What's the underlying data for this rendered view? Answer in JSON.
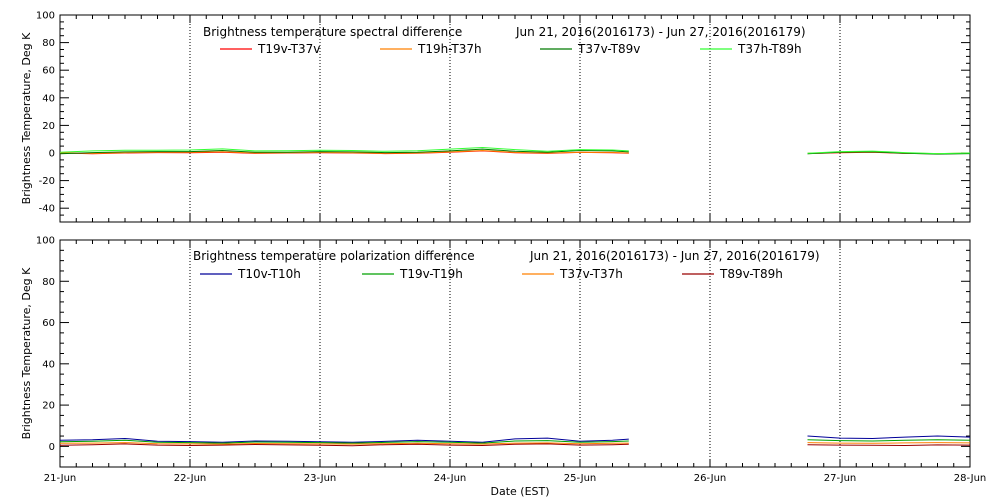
{
  "chart_data": [
    {
      "type": "line",
      "title": "Brightness temperature spectral difference",
      "date_range": "Jun 21, 2016(2016173) - Jun 27, 2016(2016179)",
      "xlabel": "",
      "ylabel": "Brightness Temperature, Deg K",
      "ylim": [
        -50,
        100
      ],
      "yticks": [
        -40,
        -20,
        0,
        20,
        40,
        60,
        80,
        100
      ],
      "xlim": [
        "2016-06-21",
        "2016-06-28"
      ],
      "xticks": [
        "21-Jun",
        "22-Jun",
        "23-Jun",
        "24-Jun",
        "25-Jun",
        "26-Jun",
        "27-Jun",
        "28-Jun"
      ],
      "grid": "vertical-dotted",
      "legend": "top",
      "series": [
        {
          "name": "T19v-T37v",
          "color": "#ff0000",
          "points": [
            [
              "2016-06-21 00:00",
              0.0
            ],
            [
              "2016-06-21 06:00",
              -0.5
            ],
            [
              "2016-06-21 12:00",
              0.0
            ],
            [
              "2016-06-21 18:00",
              0.3
            ],
            [
              "2016-06-22 00:00",
              0.2
            ],
            [
              "2016-06-22 06:00",
              0.6
            ],
            [
              "2016-06-22 12:00",
              -0.3
            ],
            [
              "2016-06-22 18:00",
              0.0
            ],
            [
              "2016-06-23 00:00",
              0.2
            ],
            [
              "2016-06-23 06:00",
              0.0
            ],
            [
              "2016-06-23 12:00",
              -0.4
            ],
            [
              "2016-06-23 18:00",
              -0.2
            ],
            [
              "2016-06-24 00:00",
              0.5
            ],
            [
              "2016-06-24 06:00",
              1.5
            ],
            [
              "2016-06-24 12:00",
              0.2
            ],
            [
              "2016-06-24 18:00",
              -0.3
            ],
            [
              "2016-06-25 00:00",
              0.4
            ],
            [
              "2016-06-25 06:00",
              0.2
            ],
            [
              "2016-06-25 09:00",
              -0.2
            ],
            null,
            [
              "2016-06-26 18:00",
              -0.4
            ],
            [
              "2016-06-27 00:00",
              0.2
            ],
            [
              "2016-06-27 06:00",
              0.5
            ],
            [
              "2016-06-27 12:00",
              -0.3
            ],
            [
              "2016-06-27 18:00",
              -0.6
            ],
            [
              "2016-06-28 00:00",
              -0.3
            ]
          ]
        },
        {
          "name": "T19h-T37h",
          "color": "#ff8000",
          "points": [
            [
              "2016-06-21 00:00",
              0.3
            ],
            [
              "2016-06-21 06:00",
              -0.3
            ],
            [
              "2016-06-21 12:00",
              0.2
            ],
            [
              "2016-06-21 18:00",
              0.5
            ],
            [
              "2016-06-22 00:00",
              0.5
            ],
            [
              "2016-06-22 06:00",
              0.9
            ],
            [
              "2016-06-22 12:00",
              0.0
            ],
            [
              "2016-06-22 18:00",
              0.2
            ],
            [
              "2016-06-23 00:00",
              0.4
            ],
            [
              "2016-06-23 06:00",
              0.2
            ],
            [
              "2016-06-23 12:00",
              -0.2
            ],
            [
              "2016-06-23 18:00",
              0.0
            ],
            [
              "2016-06-24 00:00",
              0.8
            ],
            [
              "2016-06-24 06:00",
              1.8
            ],
            [
              "2016-06-24 12:00",
              0.4
            ],
            [
              "2016-06-24 18:00",
              0.0
            ],
            [
              "2016-06-25 00:00",
              0.6
            ],
            [
              "2016-06-25 06:00",
              0.4
            ],
            [
              "2016-06-25 09:00",
              0.0
            ],
            null,
            [
              "2016-06-26 18:00",
              -0.2
            ],
            [
              "2016-06-27 00:00",
              0.4
            ],
            [
              "2016-06-27 06:00",
              0.7
            ],
            [
              "2016-06-27 12:00",
              -0.1
            ],
            [
              "2016-06-27 18:00",
              -0.4
            ],
            [
              "2016-06-28 00:00",
              -0.1
            ]
          ]
        },
        {
          "name": "T37v-T89v",
          "color": "#007a00",
          "points": [
            [
              "2016-06-21 00:00",
              -0.5
            ],
            [
              "2016-06-21 06:00",
              0.3
            ],
            [
              "2016-06-21 12:00",
              0.8
            ],
            [
              "2016-06-21 18:00",
              1.0
            ],
            [
              "2016-06-22 00:00",
              1.0
            ],
            [
              "2016-06-22 06:00",
              1.8
            ],
            [
              "2016-06-22 12:00",
              0.5
            ],
            [
              "2016-06-22 18:00",
              0.6
            ],
            [
              "2016-06-23 00:00",
              1.0
            ],
            [
              "2016-06-23 06:00",
              0.8
            ],
            [
              "2016-06-23 12:00",
              0.3
            ],
            [
              "2016-06-23 18:00",
              0.6
            ],
            [
              "2016-06-24 00:00",
              1.5
            ],
            [
              "2016-06-24 06:00",
              2.8
            ],
            [
              "2016-06-24 12:00",
              1.2
            ],
            [
              "2016-06-24 18:00",
              0.5
            ],
            [
              "2016-06-25 00:00",
              1.8
            ],
            [
              "2016-06-25 06:00",
              1.5
            ],
            [
              "2016-06-25 09:00",
              0.8
            ],
            null,
            [
              "2016-06-26 18:00",
              -0.6
            ],
            [
              "2016-06-27 00:00",
              0.5
            ],
            [
              "2016-06-27 06:00",
              0.8
            ],
            [
              "2016-06-27 12:00",
              -0.2
            ],
            [
              "2016-06-27 18:00",
              -0.8
            ],
            [
              "2016-06-28 00:00",
              -0.4
            ]
          ]
        },
        {
          "name": "T37h-T89h",
          "color": "#33ff33",
          "points": [
            [
              "2016-06-21 00:00",
              0.5
            ],
            [
              "2016-06-21 06:00",
              1.5
            ],
            [
              "2016-06-21 12:00",
              2.0
            ],
            [
              "2016-06-21 18:00",
              2.0
            ],
            [
              "2016-06-22 00:00",
              2.2
            ],
            [
              "2016-06-22 06:00",
              3.0
            ],
            [
              "2016-06-22 12:00",
              1.5
            ],
            [
              "2016-06-22 18:00",
              1.6
            ],
            [
              "2016-06-23 00:00",
              2.0
            ],
            [
              "2016-06-23 06:00",
              1.8
            ],
            [
              "2016-06-23 12:00",
              1.2
            ],
            [
              "2016-06-23 18:00",
              1.6
            ],
            [
              "2016-06-24 00:00",
              2.8
            ],
            [
              "2016-06-24 06:00",
              4.0
            ],
            [
              "2016-06-24 12:00",
              2.5
            ],
            [
              "2016-06-24 18:00",
              1.2
            ],
            [
              "2016-06-25 00:00",
              2.5
            ],
            [
              "2016-06-25 06:00",
              2.2
            ],
            [
              "2016-06-25 09:00",
              1.5
            ],
            null,
            [
              "2016-06-26 18:00",
              -0.2
            ],
            [
              "2016-06-27 00:00",
              1.0
            ],
            [
              "2016-06-27 06:00",
              1.4
            ],
            [
              "2016-06-27 12:00",
              0.3
            ],
            [
              "2016-06-27 18:00",
              -0.4
            ],
            [
              "2016-06-28 00:00",
              0.0
            ]
          ]
        }
      ]
    },
    {
      "type": "line",
      "title": "Brightness temperature polarization difference",
      "date_range": "Jun 21, 2016(2016173) - Jun 27, 2016(2016179)",
      "xlabel": "Date (EST)",
      "ylabel": "Brightness Temperature, Deg K",
      "ylim": [
        -10,
        100
      ],
      "yticks": [
        0,
        20,
        40,
        60,
        80,
        100
      ],
      "xlim": [
        "2016-06-21",
        "2016-06-28"
      ],
      "xticks": [
        "21-Jun",
        "22-Jun",
        "23-Jun",
        "24-Jun",
        "25-Jun",
        "26-Jun",
        "27-Jun",
        "28-Jun"
      ],
      "grid": "vertical-dotted",
      "legend": "top",
      "series": [
        {
          "name": "T10v-T10h",
          "color": "#000099",
          "points": [
            [
              "2016-06-21 00:00",
              3.0
            ],
            [
              "2016-06-21 06:00",
              3.2
            ],
            [
              "2016-06-21 12:00",
              3.8
            ],
            [
              "2016-06-21 18:00",
              2.5
            ],
            [
              "2016-06-22 00:00",
              2.3
            ],
            [
              "2016-06-22 06:00",
              2.0
            ],
            [
              "2016-06-22 12:00",
              2.6
            ],
            [
              "2016-06-22 18:00",
              2.5
            ],
            [
              "2016-06-23 00:00",
              2.2
            ],
            [
              "2016-06-23 06:00",
              2.0
            ],
            [
              "2016-06-23 12:00",
              2.4
            ],
            [
              "2016-06-23 18:00",
              3.0
            ],
            [
              "2016-06-24 00:00",
              2.5
            ],
            [
              "2016-06-24 06:00",
              2.0
            ],
            [
              "2016-06-24 12:00",
              3.6
            ],
            [
              "2016-06-24 18:00",
              4.0
            ],
            [
              "2016-06-25 00:00",
              2.5
            ],
            [
              "2016-06-25 06:00",
              3.0
            ],
            [
              "2016-06-25 09:00",
              3.5
            ],
            null,
            [
              "2016-06-26 18:00",
              5.0
            ],
            [
              "2016-06-27 00:00",
              4.0
            ],
            [
              "2016-06-27 06:00",
              3.8
            ],
            [
              "2016-06-27 12:00",
              4.5
            ],
            [
              "2016-06-27 18:00",
              5.0
            ],
            [
              "2016-06-28 00:00",
              4.5
            ]
          ]
        },
        {
          "name": "T19v-T19h",
          "color": "#00a000",
          "points": [
            [
              "2016-06-21 00:00",
              2.2
            ],
            [
              "2016-06-21 06:00",
              2.5
            ],
            [
              "2016-06-21 12:00",
              3.0
            ],
            [
              "2016-06-21 18:00",
              2.0
            ],
            [
              "2016-06-22 00:00",
              1.8
            ],
            [
              "2016-06-22 06:00",
              1.6
            ],
            [
              "2016-06-22 12:00",
              2.1
            ],
            [
              "2016-06-22 18:00",
              2.0
            ],
            [
              "2016-06-23 00:00",
              1.8
            ],
            [
              "2016-06-23 06:00",
              1.6
            ],
            [
              "2016-06-23 12:00",
              1.9
            ],
            [
              "2016-06-23 18:00",
              2.3
            ],
            [
              "2016-06-24 00:00",
              2.0
            ],
            [
              "2016-06-24 06:00",
              1.6
            ],
            [
              "2016-06-24 12:00",
              2.6
            ],
            [
              "2016-06-24 18:00",
              2.8
            ],
            [
              "2016-06-25 00:00",
              2.0
            ],
            [
              "2016-06-25 06:00",
              2.3
            ],
            [
              "2016-06-25 09:00",
              2.6
            ],
            null,
            [
              "2016-06-26 18:00",
              3.2
            ],
            [
              "2016-06-27 00:00",
              2.8
            ],
            [
              "2016-06-27 06:00",
              2.6
            ],
            [
              "2016-06-27 12:00",
              3.0
            ],
            [
              "2016-06-27 18:00",
              3.2
            ],
            [
              "2016-06-28 00:00",
              3.0
            ]
          ]
        },
        {
          "name": "T37v-T37h",
          "color": "#ff8000",
          "points": [
            [
              "2016-06-21 00:00",
              1.5
            ],
            [
              "2016-06-21 06:00",
              1.6
            ],
            [
              "2016-06-21 12:00",
              1.8
            ],
            [
              "2016-06-21 18:00",
              1.3
            ],
            [
              "2016-06-22 00:00",
              1.2
            ],
            [
              "2016-06-22 06:00",
              1.1
            ],
            [
              "2016-06-22 12:00",
              1.4
            ],
            [
              "2016-06-22 18:00",
              1.3
            ],
            [
              "2016-06-23 00:00",
              1.2
            ],
            [
              "2016-06-23 06:00",
              1.1
            ],
            [
              "2016-06-23 12:00",
              1.3
            ],
            [
              "2016-06-23 18:00",
              1.5
            ],
            [
              "2016-06-24 00:00",
              1.3
            ],
            [
              "2016-06-24 06:00",
              1.1
            ],
            [
              "2016-06-24 12:00",
              1.6
            ],
            [
              "2016-06-24 18:00",
              1.7
            ],
            [
              "2016-06-25 00:00",
              1.3
            ],
            [
              "2016-06-25 06:00",
              1.5
            ],
            [
              "2016-06-25 09:00",
              1.6
            ],
            null,
            [
              "2016-06-26 18:00",
              1.8
            ],
            [
              "2016-06-27 00:00",
              1.6
            ],
            [
              "2016-06-27 06:00",
              1.5
            ],
            [
              "2016-06-27 12:00",
              1.7
            ],
            [
              "2016-06-27 18:00",
              1.8
            ],
            [
              "2016-06-28 00:00",
              1.7
            ]
          ]
        },
        {
          "name": "T89v-T89h",
          "color": "#990000",
          "points": [
            [
              "2016-06-21 00:00",
              0.5
            ],
            [
              "2016-06-21 06:00",
              0.8
            ],
            [
              "2016-06-21 12:00",
              1.2
            ],
            [
              "2016-06-21 18:00",
              0.6
            ],
            [
              "2016-06-22 00:00",
              0.4
            ],
            [
              "2016-06-22 06:00",
              0.6
            ],
            [
              "2016-06-22 12:00",
              0.9
            ],
            [
              "2016-06-22 18:00",
              0.7
            ],
            [
              "2016-06-23 00:00",
              0.5
            ],
            [
              "2016-06-23 06:00",
              0.3
            ],
            [
              "2016-06-23 12:00",
              0.8
            ],
            [
              "2016-06-23 18:00",
              1.0
            ],
            [
              "2016-06-24 00:00",
              0.6
            ],
            [
              "2016-06-24 06:00",
              0.4
            ],
            [
              "2016-06-24 12:00",
              1.0
            ],
            [
              "2016-06-24 18:00",
              1.2
            ],
            [
              "2016-06-25 00:00",
              0.6
            ],
            [
              "2016-06-25 06:00",
              0.8
            ],
            [
              "2016-06-25 09:00",
              1.0
            ],
            null,
            [
              "2016-06-26 18:00",
              0.8
            ],
            [
              "2016-06-27 00:00",
              0.6
            ],
            [
              "2016-06-27 06:00",
              0.5
            ],
            [
              "2016-06-27 12:00",
              0.4
            ],
            [
              "2016-06-27 18:00",
              0.7
            ],
            [
              "2016-06-28 00:00",
              0.6
            ]
          ]
        }
      ]
    }
  ]
}
